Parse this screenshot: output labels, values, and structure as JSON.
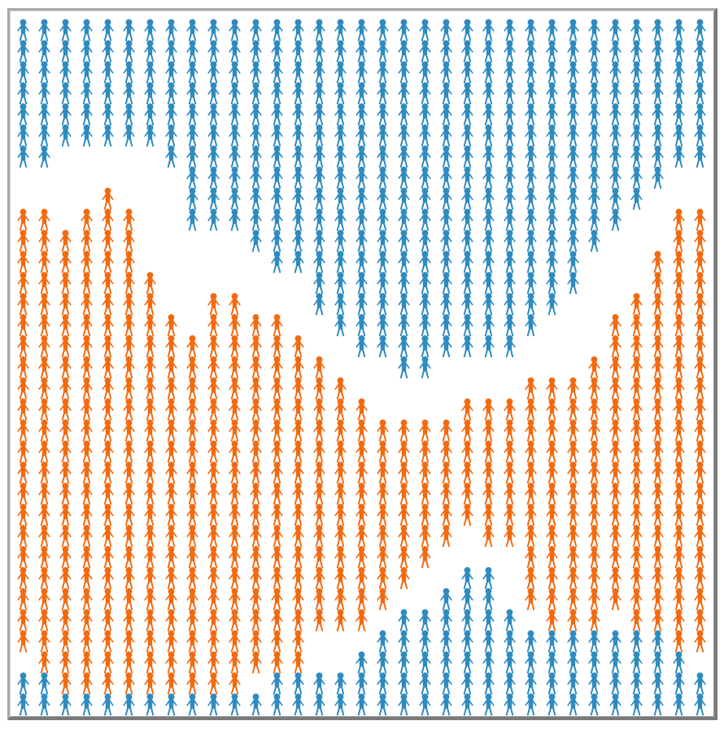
{
  "chart_data": {
    "type": "pictogram",
    "icon": "person-icon",
    "columns": 33,
    "rows": 33,
    "colors": {
      "blue": "#2e8bc0",
      "orange": "#f26a10"
    },
    "columns_data": [
      {
        "blue_top": 7,
        "orange_start": 9,
        "orange_end": 29,
        "blue_bottom_start": 31
      },
      {
        "blue_top": 7,
        "orange_start": 9,
        "orange_end": 30,
        "blue_bottom_start": 31
      },
      {
        "blue_top": 6,
        "orange_start": 10,
        "orange_end": 31,
        "blue_bottom_start": 32
      },
      {
        "blue_top": 6,
        "orange_start": 9,
        "orange_end": 31,
        "blue_bottom_start": 32
      },
      {
        "blue_top": 6,
        "orange_start": 8,
        "orange_end": 31,
        "blue_bottom_start": 32
      },
      {
        "blue_top": 6,
        "orange_start": 9,
        "orange_end": 31,
        "blue_bottom_start": 32
      },
      {
        "blue_top": 6,
        "orange_start": 12,
        "orange_end": 31,
        "blue_bottom_start": 32
      },
      {
        "blue_top": 7,
        "orange_start": 14,
        "orange_end": 31,
        "blue_bottom_start": 32
      },
      {
        "blue_top": 10,
        "orange_start": 15,
        "orange_end": 31,
        "blue_bottom_start": 32
      },
      {
        "blue_top": 10,
        "orange_start": 13,
        "orange_end": 31,
        "blue_bottom_start": 32
      },
      {
        "blue_top": 10,
        "orange_start": 13,
        "orange_end": 31,
        "blue_bottom_start": 32
      },
      {
        "blue_top": 11,
        "orange_start": 14,
        "orange_end": 30,
        "blue_bottom_start": 32
      },
      {
        "blue_top": 12,
        "orange_start": 14,
        "orange_end": 30,
        "blue_bottom_start": 31
      },
      {
        "blue_top": 12,
        "orange_start": 15,
        "orange_end": 30,
        "blue_bottom_start": 31
      },
      {
        "blue_top": 14,
        "orange_start": 16,
        "orange_end": 28,
        "blue_bottom_start": 31
      },
      {
        "blue_top": 15,
        "orange_start": 17,
        "orange_end": 28,
        "blue_bottom_start": 31
      },
      {
        "blue_top": 16,
        "orange_start": 18,
        "orange_end": 28,
        "blue_bottom_start": 30
      },
      {
        "blue_top": 16,
        "orange_start": 19,
        "orange_end": 27,
        "blue_bottom_start": 29
      },
      {
        "blue_top": 17,
        "orange_start": 19,
        "orange_end": 26,
        "blue_bottom_start": 28
      },
      {
        "blue_top": 17,
        "orange_start": 19,
        "orange_end": 25,
        "blue_bottom_start": 28
      },
      {
        "blue_top": 16,
        "orange_start": 19,
        "orange_end": 24,
        "blue_bottom_start": 27
      },
      {
        "blue_top": 16,
        "orange_start": 18,
        "orange_end": 23,
        "blue_bottom_start": 26
      },
      {
        "blue_top": 16,
        "orange_start": 18,
        "orange_end": 24,
        "blue_bottom_start": 26
      },
      {
        "blue_top": 16,
        "orange_start": 18,
        "orange_end": 24,
        "blue_bottom_start": 28
      },
      {
        "blue_top": 15,
        "orange_start": 17,
        "orange_end": 27,
        "blue_bottom_start": 29
      },
      {
        "blue_top": 14,
        "orange_start": 17,
        "orange_end": 28,
        "blue_bottom_start": 29
      },
      {
        "blue_top": 13,
        "orange_start": 17,
        "orange_end": 28,
        "blue_bottom_start": 29
      },
      {
        "blue_top": 11,
        "orange_start": 16,
        "orange_end": 28,
        "blue_bottom_start": 29
      },
      {
        "blue_top": 10,
        "orange_start": 14,
        "orange_end": 27,
        "blue_bottom_start": 29
      },
      {
        "blue_top": 9,
        "orange_start": 13,
        "orange_end": 28,
        "blue_bottom_start": 29
      },
      {
        "blue_top": 8,
        "orange_start": 11,
        "orange_end": 28,
        "blue_bottom_start": 29
      },
      {
        "blue_top": 7,
        "orange_start": 9,
        "orange_end": 29,
        "blue_bottom_start": 30
      },
      {
        "blue_top": 7,
        "orange_start": 9,
        "orange_end": 29,
        "blue_bottom_start": 31
      }
    ]
  }
}
